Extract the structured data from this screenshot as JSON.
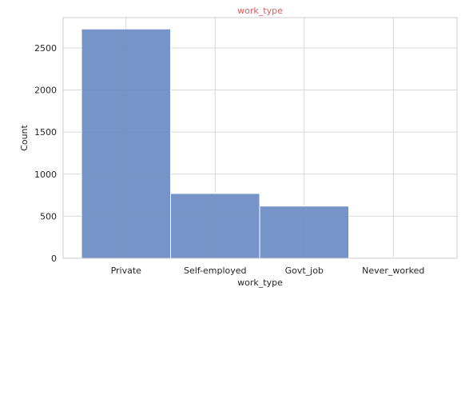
{
  "chart_data": {
    "type": "bar",
    "title": "work_type",
    "xlabel": "work_type",
    "ylabel": "Count",
    "categories": [
      "Private",
      "Self-employed",
      "Govt_job",
      "Never_worked"
    ],
    "values": [
      2725,
      770,
      620,
      5
    ],
    "ylim": [
      0,
      2860
    ],
    "yticks": [
      0,
      500,
      1000,
      1500,
      2000,
      2500
    ],
    "grid": true,
    "colors": {
      "bar": "#6a8bc2",
      "title": "#d65f5f",
      "grid": "#d9d9d9",
      "frame": "#cccccc"
    }
  }
}
